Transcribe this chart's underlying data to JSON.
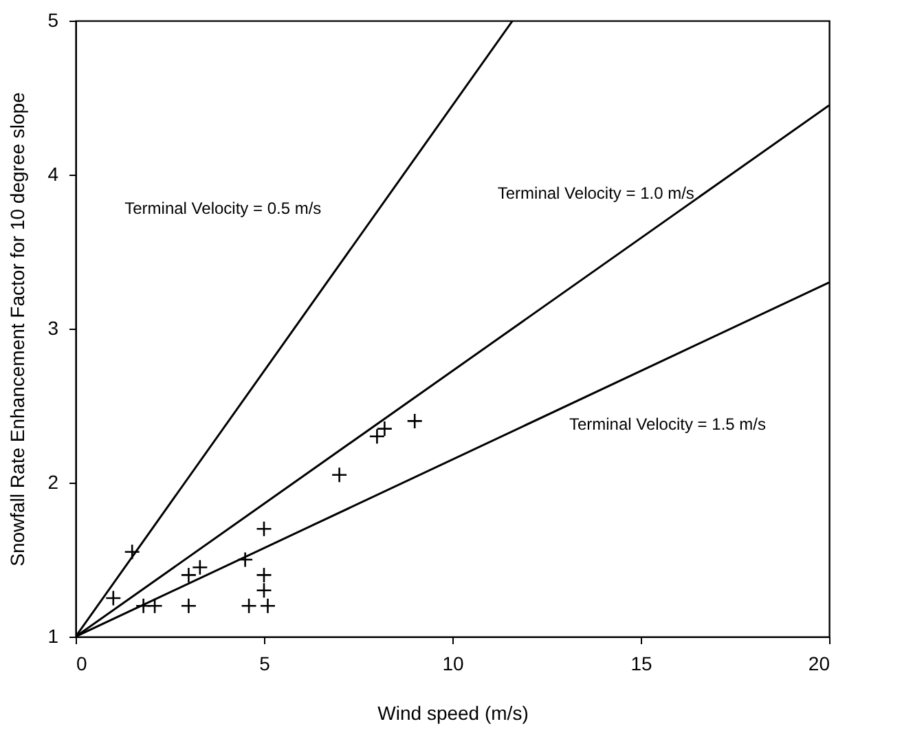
{
  "chart_data": {
    "type": "scatter",
    "xlabel": "Wind speed (m/s)",
    "ylabel": "Snowfall Rate Enhancement Factor for 10 degree slope",
    "xlim": [
      0,
      20
    ],
    "ylim": [
      1,
      5
    ],
    "xticks": [
      0,
      5,
      10,
      15,
      20
    ],
    "yticks": [
      1,
      2,
      3,
      4,
      5
    ],
    "grid": false,
    "series": [
      {
        "marker": "cross",
        "color": "#000000",
        "x": [
          1.0,
          1.5,
          1.8,
          2.1,
          3.0,
          3.0,
          3.3,
          4.5,
          4.6,
          5.0,
          5.0,
          5.0,
          5.1,
          7.0,
          8.0,
          8.2,
          9.0
        ],
        "values": [
          1.25,
          1.55,
          1.2,
          1.2,
          1.4,
          1.2,
          1.45,
          1.5,
          1.2,
          1.7,
          1.4,
          1.3,
          1.2,
          2.05,
          2.3,
          2.35,
          2.4
        ]
      },
      {
        "type": "line",
        "color": "#000000",
        "x": [
          0,
          11.6
        ],
        "values": [
          1,
          5
        ]
      },
      {
        "type": "line",
        "color": "#000000",
        "x": [
          0,
          20
        ],
        "values": [
          1,
          4.45
        ]
      },
      {
        "type": "line",
        "color": "#000000",
        "x": [
          0,
          20
        ],
        "values": [
          1,
          3.3
        ]
      }
    ],
    "annotations": [
      "Terminal Velocity = 0.5 m/s",
      "Terminal Velocity = 1.0 m/s",
      "Terminal Velocity = 1.5 m/s"
    ]
  }
}
